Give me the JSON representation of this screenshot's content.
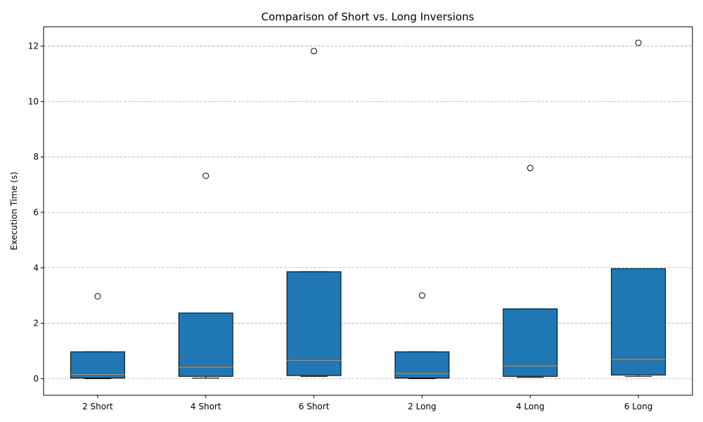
{
  "chart_data": {
    "type": "boxplot",
    "title": "Comparison of Short vs. Long Inversions",
    "xlabel": "",
    "ylabel": "Execution Time (s)",
    "ylim": [
      -0.6,
      12.7
    ],
    "yticks": [
      0,
      2,
      4,
      6,
      8,
      10,
      12
    ],
    "grid": "y-dashed",
    "colors": {
      "box_fill": "#1f77b4",
      "median": "#ff7f0e",
      "grid": "#b0b0b0",
      "edge": "#000000"
    },
    "categories": [
      "2 Short",
      "4 Short",
      "6 Short",
      "2 Long",
      "4 Long",
      "6 Long"
    ],
    "boxes": [
      {
        "whislo": 0.0,
        "q1": 0.02,
        "med": 0.15,
        "q3": 0.97,
        "whishi": 0.97,
        "fliers": [
          2.97
        ]
      },
      {
        "whislo": 0.02,
        "q1": 0.08,
        "med": 0.41,
        "q3": 2.37,
        "whishi": 2.37,
        "fliers": [
          7.32
        ]
      },
      {
        "whislo": 0.08,
        "q1": 0.11,
        "med": 0.66,
        "q3": 3.86,
        "whishi": 3.86,
        "fliers": [
          11.82
        ]
      },
      {
        "whislo": 0.0,
        "q1": 0.02,
        "med": 0.18,
        "q3": 0.97,
        "whishi": 0.97,
        "fliers": [
          3.0
        ]
      },
      {
        "whislo": 0.05,
        "q1": 0.08,
        "med": 0.46,
        "q3": 2.52,
        "whishi": 2.52,
        "fliers": [
          7.6
        ]
      },
      {
        "whislo": 0.08,
        "q1": 0.13,
        "med": 0.69,
        "q3": 3.97,
        "whishi": 3.97,
        "fliers": [
          12.12
        ]
      }
    ]
  }
}
